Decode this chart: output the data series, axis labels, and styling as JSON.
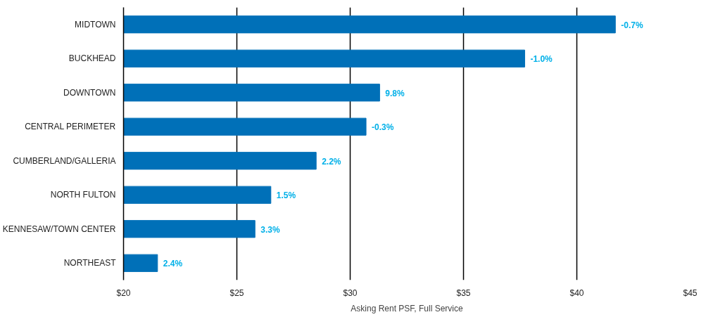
{
  "chart_data": {
    "type": "bar",
    "orientation": "horizontal",
    "categories": [
      "MIDTOWN",
      "BUCKHEAD",
      "DOWNTOWN",
      "CENTRAL PERIMETER",
      "CUMBERLAND/GALLERIA",
      "NORTH FULTON",
      "KENNESAW/TOWN CENTER",
      "NORTHEAST"
    ],
    "values": [
      41.7,
      37.7,
      31.3,
      30.7,
      28.5,
      26.5,
      25.8,
      21.5
    ],
    "annotations": [
      {
        "text": "-0.7%",
        "x": 41.7,
        "y": "MIDTOWN"
      },
      {
        "text": "-1.0%",
        "x": 37.7,
        "y": "BUCKHEAD"
      },
      {
        "text": "9.8%",
        "x": 31.3,
        "y": "DOWNTOWN"
      },
      {
        "text": "-0.3%",
        "x": 30.7,
        "y": "CENTRAL PERIMETER"
      },
      {
        "text": "2.2%",
        "x": 28.5,
        "y": "CUMBERLAND/GALLERIA"
      },
      {
        "text": "1.5%",
        "x": 26.5,
        "y": "NORTH FULTON"
      },
      {
        "text": "3.3%",
        "x": 25.8,
        "y": "KENNESAW/TOWN CENTER"
      },
      {
        "text": "2.4%",
        "x": 21.5,
        "y": "NORTHEAST"
      }
    ],
    "color": "#0070b8",
    "xlabel": "Asking Rent PSF, Full Service",
    "xlim": [
      20,
      45
    ],
    "xticks": [
      {
        "value": 20,
        "label": "$20"
      },
      {
        "value": 25,
        "label": "$25"
      },
      {
        "value": 30,
        "label": "$30"
      },
      {
        "value": 35,
        "label": "$35"
      },
      {
        "value": 40,
        "label": "$40"
      },
      {
        "value": 45,
        "label": "$45"
      }
    ],
    "grid": "x"
  }
}
